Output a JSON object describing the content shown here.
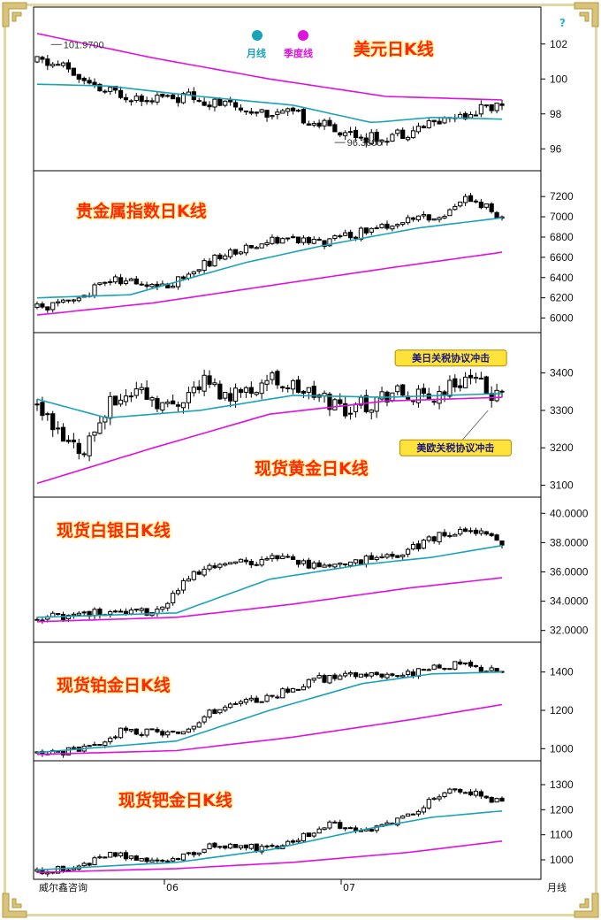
{
  "footer": {
    "source": "威尔鑫咨询",
    "period_label": "月线",
    "help_icon": "?"
  },
  "legend": {
    "items": [
      {
        "label": "月线",
        "color": "#2ab3c8",
        "icon": "teal-ball-icon"
      },
      {
        "label": "季度线",
        "color": "#e020e0",
        "icon": "magenta-ball-icon"
      }
    ]
  },
  "colors": {
    "up": "#ffffff",
    "down": "#000000",
    "ma_month": "#1aa3b8",
    "ma_quarter": "#e010e0",
    "title": "#ff2a00"
  },
  "x_axis": {
    "labels": [
      "06",
      "07"
    ]
  },
  "chart_data": [
    {
      "type": "candlestick",
      "title": "美元日K线",
      "ylim": [
        95,
        103
      ],
      "yticks": [
        "96",
        "98",
        "100",
        "102"
      ],
      "start": 101.0,
      "end": 98.5,
      "path": [
        [
          0,
          101.0
        ],
        [
          0.06,
          100.7
        ],
        [
          0.12,
          99.4
        ],
        [
          0.22,
          99.0
        ],
        [
          0.34,
          98.9
        ],
        [
          0.42,
          98.4
        ],
        [
          0.56,
          97.9
        ],
        [
          0.62,
          97.3
        ],
        [
          0.72,
          96.6
        ],
        [
          0.8,
          97.0
        ],
        [
          0.9,
          97.9
        ],
        [
          1.0,
          98.6
        ]
      ],
      "seed": 11,
      "noise": 0.35,
      "ma_month": [
        [
          0,
          99.7
        ],
        [
          0.15,
          99.6
        ],
        [
          0.35,
          99.0
        ],
        [
          0.55,
          98.5
        ],
        [
          0.72,
          97.5
        ],
        [
          0.85,
          97.8
        ],
        [
          1.0,
          97.7
        ]
      ],
      "ma_quarter": [
        [
          0,
          102.6
        ],
        [
          0.25,
          101.2
        ],
        [
          0.5,
          100.0
        ],
        [
          0.75,
          99.0
        ],
        [
          1.0,
          98.8
        ]
      ],
      "annotations": [
        {
          "text": "101.9700",
          "x": 0.03,
          "y": 101.97,
          "side": "right"
        },
        {
          "text": "96.3600",
          "x": 0.64,
          "y": 96.36,
          "side": "right"
        }
      ],
      "callouts": []
    },
    {
      "type": "candlestick",
      "title": "贵金属指数日K线",
      "ylim": [
        5900,
        7350
      ],
      "yticks": [
        "6000",
        "6200",
        "6400",
        "6600",
        "6800",
        "7000",
        "7200"
      ],
      "start": 6100,
      "end": 7000,
      "path": [
        [
          0,
          6100
        ],
        [
          0.08,
          6150
        ],
        [
          0.15,
          6380
        ],
        [
          0.28,
          6320
        ],
        [
          0.38,
          6580
        ],
        [
          0.5,
          6780
        ],
        [
          0.62,
          6750
        ],
        [
          0.7,
          6850
        ],
        [
          0.78,
          6950
        ],
        [
          0.86,
          7000
        ],
        [
          0.93,
          7200
        ],
        [
          1.0,
          6990
        ]
      ],
      "seed": 23,
      "noise": 45,
      "ma_month": [
        [
          0,
          6200
        ],
        [
          0.2,
          6230
        ],
        [
          0.45,
          6550
        ],
        [
          0.62,
          6720
        ],
        [
          0.82,
          6890
        ],
        [
          1.0,
          6990
        ]
      ],
      "ma_quarter": [
        [
          0,
          6030
        ],
        [
          0.25,
          6150
        ],
        [
          0.5,
          6320
        ],
        [
          0.75,
          6490
        ],
        [
          1.0,
          6650
        ]
      ],
      "annotations": [],
      "callouts": []
    },
    {
      "type": "candlestick",
      "title": "现货黄金日K线",
      "ylim": [
        3080,
        3470
      ],
      "yticks": [
        "3100",
        "3200",
        "3300",
        "3400"
      ],
      "start": 3310,
      "end": 3330,
      "path": [
        [
          0,
          3310
        ],
        [
          0.06,
          3210
        ],
        [
          0.1,
          3200
        ],
        [
          0.16,
          3320
        ],
        [
          0.22,
          3360
        ],
        [
          0.28,
          3310
        ],
        [
          0.36,
          3380
        ],
        [
          0.42,
          3330
        ],
        [
          0.5,
          3390
        ],
        [
          0.6,
          3340
        ],
        [
          0.68,
          3300
        ],
        [
          0.76,
          3350
        ],
        [
          0.84,
          3330
        ],
        [
          0.92,
          3390
        ],
        [
          1.0,
          3330
        ]
      ],
      "seed": 37,
      "noise": 25,
      "ma_month": [
        [
          0,
          3330
        ],
        [
          0.15,
          3280
        ],
        [
          0.35,
          3300
        ],
        [
          0.55,
          3340
        ],
        [
          0.75,
          3335
        ],
        [
          1.0,
          3345
        ]
      ],
      "ma_quarter": [
        [
          0,
          3105
        ],
        [
          0.25,
          3200
        ],
        [
          0.5,
          3290
        ],
        [
          0.75,
          3325
        ],
        [
          1.0,
          3335
        ]
      ],
      "annotations": [],
      "callouts": [
        {
          "text": "美日关税协议冲击",
          "x": 0.89,
          "y": 3440,
          "anchor_x": 0.88,
          "anchor_y": 3420
        },
        {
          "text": "美欧关税协议冲击",
          "x": 0.9,
          "y": 3200,
          "anchor_x": 0.97,
          "anchor_y": 3300
        }
      ]
    },
    {
      "type": "candlestick",
      "title": "现货白银日K线",
      "ylim": [
        31.5,
        40.5
      ],
      "yticks": [
        "32.0000",
        "34.0000",
        "36.0000",
        "38.0000",
        "40.0000"
      ],
      "start": 32.8,
      "end": 38.2,
      "path": [
        [
          0,
          32.8
        ],
        [
          0.12,
          33.2
        ],
        [
          0.26,
          33.3
        ],
        [
          0.34,
          36.0
        ],
        [
          0.44,
          36.6
        ],
        [
          0.52,
          37.0
        ],
        [
          0.6,
          36.3
        ],
        [
          0.68,
          36.8
        ],
        [
          0.78,
          37.0
        ],
        [
          0.84,
          38.3
        ],
        [
          0.93,
          39.0
        ],
        [
          1.0,
          38.0
        ]
      ],
      "seed": 51,
      "noise": 0.3,
      "ma_month": [
        [
          0,
          32.9
        ],
        [
          0.3,
          33.2
        ],
        [
          0.5,
          35.5
        ],
        [
          0.7,
          36.5
        ],
        [
          0.85,
          37.0
        ],
        [
          1.0,
          37.8
        ]
      ],
      "ma_quarter": [
        [
          0,
          32.6
        ],
        [
          0.3,
          32.9
        ],
        [
          0.55,
          33.8
        ],
        [
          0.8,
          34.9
        ],
        [
          1.0,
          35.6
        ]
      ],
      "annotations": [],
      "callouts": []
    },
    {
      "type": "candlestick",
      "title": "现货铂金日K线",
      "ylim": [
        960,
        1500
      ],
      "yticks": [
        "1000",
        "1200",
        "1400"
      ],
      "start": 975,
      "end": 1400,
      "path": [
        [
          0,
          975
        ],
        [
          0.12,
          1000
        ],
        [
          0.18,
          1090
        ],
        [
          0.3,
          1080
        ],
        [
          0.38,
          1200
        ],
        [
          0.5,
          1270
        ],
        [
          0.6,
          1360
        ],
        [
          0.7,
          1390
        ],
        [
          0.8,
          1390
        ],
        [
          0.9,
          1440
        ],
        [
          1.0,
          1400
        ]
      ],
      "seed": 67,
      "noise": 20,
      "ma_month": [
        [
          0,
          980
        ],
        [
          0.3,
          1040
        ],
        [
          0.5,
          1200
        ],
        [
          0.7,
          1340
        ],
        [
          0.85,
          1390
        ],
        [
          1.0,
          1400
        ]
      ],
      "ma_quarter": [
        [
          0,
          970
        ],
        [
          0.3,
          990
        ],
        [
          0.55,
          1060
        ],
        [
          0.8,
          1150
        ],
        [
          1.0,
          1230
        ]
      ],
      "annotations": [],
      "callouts": []
    },
    {
      "type": "candlestick",
      "title": "现货钯金日K线",
      "ylim": [
        940,
        1360
      ],
      "yticks": [
        "1000",
        "1100",
        "1200",
        "1300"
      ],
      "start": 955,
      "end": 1225,
      "path": [
        [
          0,
          955
        ],
        [
          0.1,
          975
        ],
        [
          0.15,
          1020
        ],
        [
          0.28,
          1000
        ],
        [
          0.38,
          1060
        ],
        [
          0.52,
          1040
        ],
        [
          0.62,
          1140
        ],
        [
          0.72,
          1120
        ],
        [
          0.8,
          1180
        ],
        [
          0.88,
          1270
        ],
        [
          0.95,
          1260
        ],
        [
          1.0,
          1225
        ]
      ],
      "seed": 79,
      "noise": 14,
      "ma_month": [
        [
          0,
          960
        ],
        [
          0.3,
          990
        ],
        [
          0.5,
          1040
        ],
        [
          0.7,
          1120
        ],
        [
          0.85,
          1170
        ],
        [
          1.0,
          1195
        ]
      ],
      "ma_quarter": [
        [
          0,
          950
        ],
        [
          0.3,
          965
        ],
        [
          0.55,
          990
        ],
        [
          0.8,
          1030
        ],
        [
          1.0,
          1075
        ]
      ],
      "annotations": [],
      "callouts": []
    }
  ]
}
